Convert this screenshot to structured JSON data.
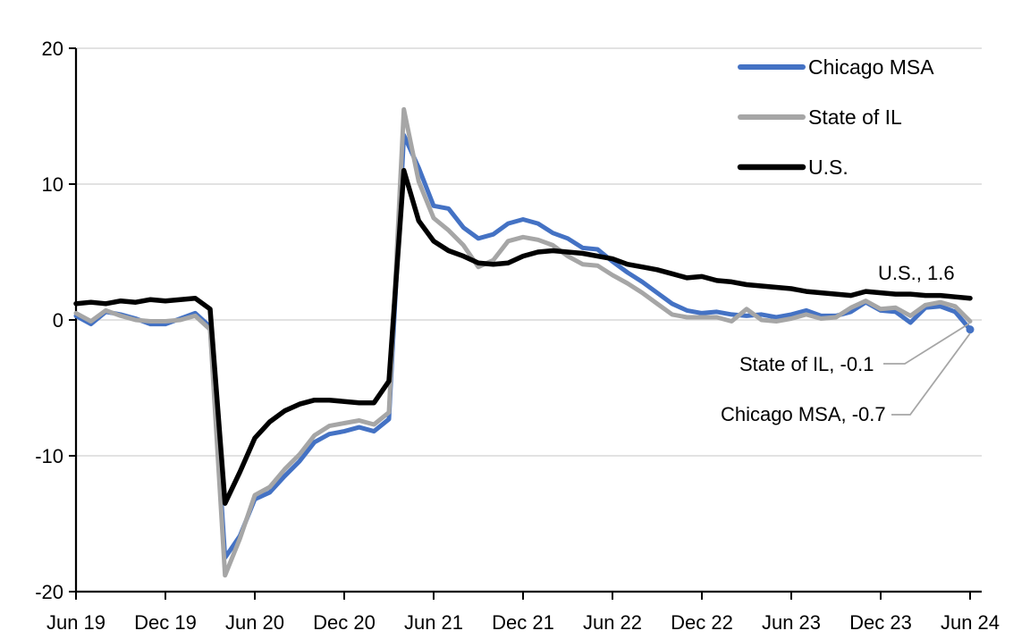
{
  "chart_data": {
    "type": "line",
    "title": "",
    "frequency": "monthly",
    "x_start": "Jun 2019",
    "x_end": "Jun 2024",
    "x_tick_labels": [
      "Jun 19",
      "Dec 19",
      "Jun 20",
      "Dec 20",
      "Jun 21",
      "Dec 21",
      "Jun 22",
      "Dec 22",
      "Jun 23",
      "Dec 23",
      "Jun 24"
    ],
    "y_ticks": [
      20,
      10,
      0,
      -10,
      -20
    ],
    "ylim": [
      -20,
      20
    ],
    "grid": true,
    "legend_position": "top-right",
    "colors": {
      "chicago_msa": "#4472C4",
      "state_of_il": "#A6A6A6",
      "us": "#000000",
      "grid": "#D9D9D9",
      "axis": "#000000",
      "annotation_text": "#595959",
      "leader_line": "#A6A6A6",
      "background": "#FFFFFF"
    },
    "series": [
      {
        "name": "Chicago MSA",
        "color": "#4472C4",
        "final_value": -0.7,
        "end_dot": true,
        "values": [
          0.3,
          -0.3,
          0.6,
          0.4,
          0.1,
          -0.3,
          -0.3,
          0.1,
          0.5,
          -0.5,
          -17.5,
          -15.9,
          -13.2,
          -12.7,
          -11.5,
          -10.4,
          -9.0,
          -8.4,
          -8.2,
          -7.9,
          -8.2,
          -7.3,
          13.6,
          11.2,
          8.4,
          8.2,
          6.8,
          6.0,
          6.3,
          7.1,
          7.4,
          7.1,
          6.4,
          6.0,
          5.3,
          5.2,
          4.3,
          3.5,
          2.8,
          2.0,
          1.2,
          0.7,
          0.5,
          0.6,
          0.4,
          0.3,
          0.4,
          0.2,
          0.4,
          0.7,
          0.3,
          0.3,
          0.6,
          1.3,
          0.7,
          0.6,
          -0.2,
          0.9,
          1.0,
          0.6,
          -0.7
        ]
      },
      {
        "name": "State of IL",
        "color": "#A6A6A6",
        "final_value": -0.1,
        "end_dot": false,
        "values": [
          0.5,
          -0.1,
          0.7,
          0.3,
          0.0,
          -0.1,
          -0.1,
          0.0,
          0.3,
          -0.7,
          -18.8,
          -16.1,
          -12.9,
          -12.3,
          -11.0,
          -9.9,
          -8.5,
          -7.8,
          -7.6,
          -7.4,
          -7.7,
          -6.8,
          15.5,
          10.2,
          7.5,
          6.6,
          5.5,
          3.9,
          4.4,
          5.8,
          6.1,
          5.9,
          5.5,
          4.7,
          4.1,
          4.0,
          3.3,
          2.7,
          2.0,
          1.2,
          0.4,
          0.2,
          0.2,
          0.2,
          -0.1,
          0.8,
          0.0,
          -0.1,
          0.1,
          0.4,
          0.1,
          0.2,
          0.9,
          1.4,
          0.8,
          0.9,
          0.3,
          1.1,
          1.3,
          1.0,
          -0.1
        ]
      },
      {
        "name": "U.S.",
        "color": "#000000",
        "final_value": 1.6,
        "end_dot": false,
        "values": [
          1.2,
          1.3,
          1.2,
          1.4,
          1.3,
          1.5,
          1.4,
          1.5,
          1.6,
          0.8,
          -13.5,
          -11.2,
          -8.7,
          -7.5,
          -6.7,
          -6.2,
          -5.9,
          -5.9,
          -6.0,
          -6.1,
          -6.1,
          -4.5,
          11.0,
          7.3,
          5.8,
          5.1,
          4.7,
          4.2,
          4.1,
          4.2,
          4.7,
          5.0,
          5.1,
          5.0,
          4.9,
          4.7,
          4.5,
          4.1,
          3.9,
          3.7,
          3.4,
          3.1,
          3.2,
          2.9,
          2.8,
          2.6,
          2.5,
          2.4,
          2.3,
          2.1,
          2.0,
          1.9,
          1.8,
          2.1,
          2.0,
          1.9,
          1.9,
          1.8,
          1.8,
          1.7,
          1.6
        ]
      }
    ],
    "annotations": [
      {
        "id": "us",
        "text": "U.S., 1.6",
        "series": "U.S."
      },
      {
        "id": "il",
        "text": "State of IL, -0.1",
        "series": "State of IL"
      },
      {
        "id": "chicago",
        "text": "Chicago MSA, -0.7",
        "series": "Chicago MSA"
      }
    ]
  }
}
